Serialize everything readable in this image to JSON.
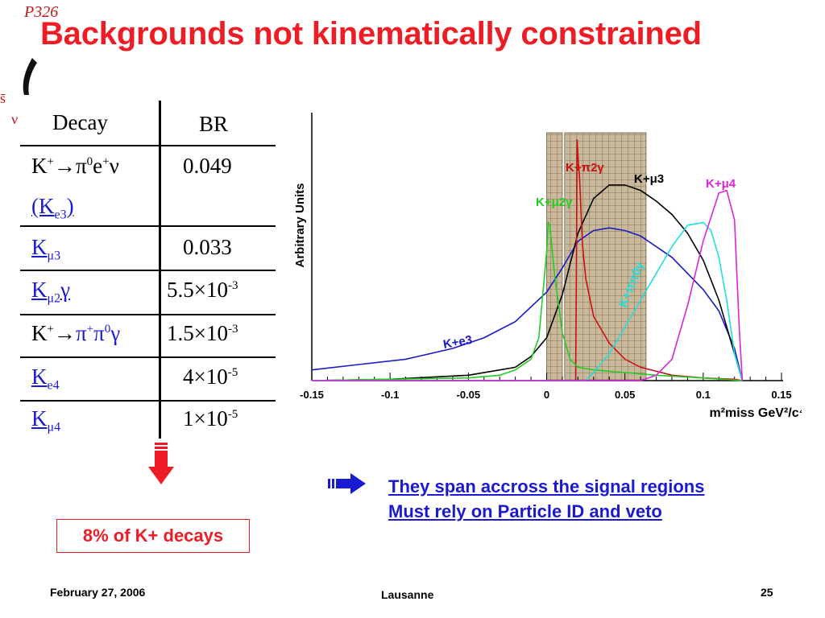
{
  "title": "Backgrounds not kinematically constrained",
  "logo_fragments": [
    "P326",
    "s̄",
    "ν"
  ],
  "table": {
    "headers": [
      "Decay",
      "BR"
    ],
    "rows": [
      {
        "decay": "K⁺→π⁰e⁺ν (Ke3)",
        "br": "0.049"
      },
      {
        "decay": "Kμ3",
        "br": "0.033"
      },
      {
        "decay": "Kμ2γ",
        "br": "5.5×10⁻³"
      },
      {
        "decay": "K⁺→π⁺π⁰γ",
        "br": "1.5×10⁻³"
      },
      {
        "decay": "Ke4",
        "br": "4×10⁻⁵"
      },
      {
        "decay": "Kμ4",
        "br": "1×10⁻⁵"
      }
    ]
  },
  "note": "8% of K+ decays",
  "callout": {
    "line1": "They span accross the signal regions",
    "line2": "Must rely on Particle ID and veto"
  },
  "footer": {
    "date": "February 27, 2006",
    "place": "Lausanne",
    "page": "25"
  },
  "chart_data": {
    "type": "line",
    "ylabel": "Arbitrary Units",
    "xlabel": "m²miss GeV²/c⁴",
    "xlim": [
      -0.15,
      0.15
    ],
    "xticks": [
      "-0.15",
      "-0.1",
      "-0.05",
      "0",
      "0.05",
      "0.1",
      "0.15"
    ],
    "tick_values": [
      -0.15,
      -0.1,
      -0.05,
      0,
      0.05,
      0.1,
      0.15
    ],
    "ylim": [
      0,
      1
    ],
    "grid": false,
    "shaded_regions": [
      [
        0,
        0.01
      ],
      [
        0.0115,
        0.0635
      ]
    ],
    "series": [
      {
        "name": "Ke3+",
        "color": "#1a1ac8",
        "x": [
          -0.15,
          -0.12,
          -0.09,
          -0.06,
          -0.04,
          -0.02,
          0,
          0.01,
          0.02,
          0.03,
          0.04,
          0.05,
          0.06,
          0.08,
          0.1,
          0.11,
          0.12,
          0.125
        ],
        "y": [
          0.04,
          0.06,
          0.08,
          0.12,
          0.16,
          0.22,
          0.33,
          0.42,
          0.52,
          0.56,
          0.57,
          0.56,
          0.54,
          0.46,
          0.34,
          0.26,
          0.12,
          0
        ]
      },
      {
        "name": "Kμ3+",
        "color": "#000000",
        "x": [
          -0.15,
          -0.1,
          -0.05,
          -0.02,
          -0.01,
          0,
          0.01,
          0.02,
          0.03,
          0.04,
          0.05,
          0.06,
          0.07,
          0.08,
          0.09,
          0.1,
          0.11,
          0.12,
          0.125
        ],
        "y": [
          0,
          0.005,
          0.02,
          0.05,
          0.09,
          0.16,
          0.32,
          0.55,
          0.68,
          0.73,
          0.73,
          0.71,
          0.67,
          0.62,
          0.55,
          0.45,
          0.3,
          0.1,
          0
        ]
      },
      {
        "name": "Kπ2γ+",
        "color": "#cc1111",
        "x": [
          -0.15,
          0.0185,
          0.019,
          0.0195,
          0.02,
          0.021,
          0.022,
          0.023,
          0.025,
          0.03,
          0.04,
          0.05,
          0.06,
          0.08,
          0.1,
          0.12,
          0.125
        ],
        "y": [
          0,
          0,
          0.4,
          0.9,
          0.84,
          0.76,
          0.62,
          0.5,
          0.38,
          0.24,
          0.14,
          0.08,
          0.05,
          0.02,
          0.01,
          0.005,
          0
        ]
      },
      {
        "name": "Kμ2γ+",
        "color": "#22cc22",
        "x": [
          -0.15,
          -0.1,
          -0.05,
          -0.03,
          -0.02,
          -0.01,
          -0.005,
          0,
          0.001,
          0.002,
          0.005,
          0.01,
          0.015,
          0.02,
          0.03,
          0.05,
          0.07,
          0.1,
          0.125
        ],
        "y": [
          0,
          0.005,
          0.01,
          0.02,
          0.04,
          0.08,
          0.16,
          0.48,
          0.59,
          0.58,
          0.4,
          0.18,
          0.08,
          0.05,
          0.04,
          0.03,
          0.02,
          0.01,
          0
        ]
      },
      {
        "name": "Kππ0γ+",
        "color": "#22dddd",
        "x": [
          -0.15,
          0.025,
          0.03,
          0.04,
          0.05,
          0.06,
          0.07,
          0.08,
          0.09,
          0.1,
          0.105,
          0.11,
          0.115,
          0.12,
          0.125
        ],
        "y": [
          0,
          0,
          0.03,
          0.1,
          0.2,
          0.3,
          0.4,
          0.5,
          0.58,
          0.59,
          0.56,
          0.46,
          0.3,
          0.1,
          0
        ]
      },
      {
        "name": "Kμ4+",
        "color": "#dd22dd",
        "x": [
          -0.15,
          0.06,
          0.07,
          0.08,
          0.09,
          0.1,
          0.11,
          0.115,
          0.12,
          0.123,
          0.125
        ],
        "y": [
          0,
          0,
          0.02,
          0.08,
          0.28,
          0.52,
          0.7,
          0.71,
          0.6,
          0.2,
          0
        ]
      }
    ],
    "labels": [
      "K+π2γ",
      "K+μ3",
      "K+μ4",
      "K+μ2γ",
      "K+ππ0γ",
      "K+e3"
    ]
  }
}
